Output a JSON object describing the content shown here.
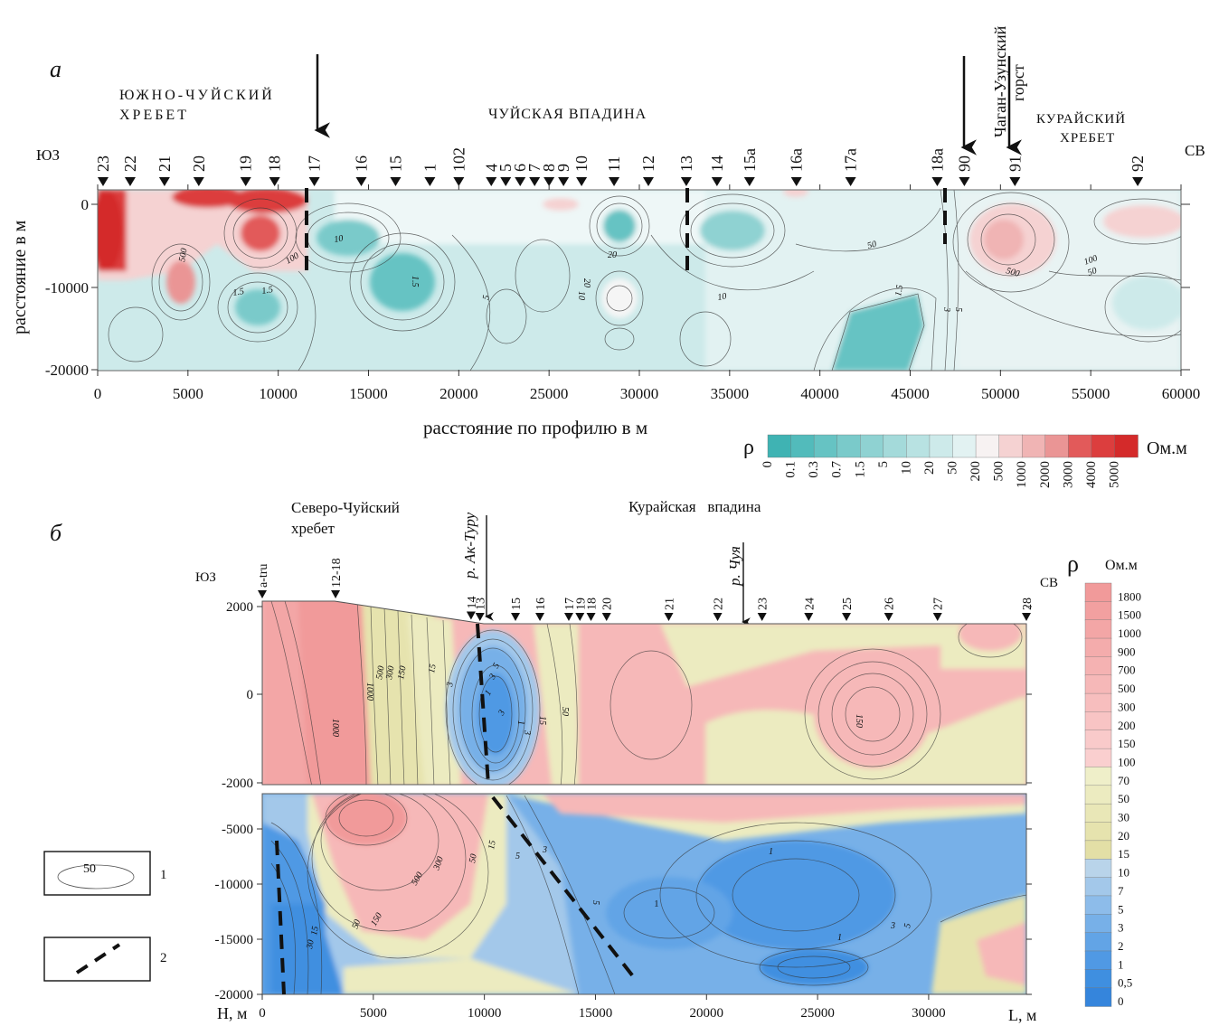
{
  "panel_a": {
    "letter": "а",
    "region_south_chuya": [
      "ЮЖНО-ЧУЙСКИЙ",
      "ХРЕБЕТ"
    ],
    "region_chuya_basin": "ЧУЙСКАЯ ВПАДИНА",
    "region_kurai_ridge": [
      "КУРАЙСКИЙ",
      "ХРЕБЕТ"
    ],
    "region_chagan": [
      "Чаган-Узунский",
      "горст"
    ],
    "dir_sw": "ЮЗ",
    "dir_ne": "СВ",
    "y_axis_label": "расстояние в м",
    "x_axis_label": "расстояние по профилю в м",
    "x_ticks": [
      "0",
      "5000",
      "10000",
      "15000",
      "20000",
      "25000",
      "30000",
      "35000",
      "40000",
      "45000",
      "50000",
      "55000",
      "60000"
    ],
    "y_ticks": [
      "0",
      "-10000",
      "-20000"
    ],
    "stations": [
      {
        "id": "23",
        "x": 300
      },
      {
        "id": "22",
        "x": 1800
      },
      {
        "id": "21",
        "x": 3700
      },
      {
        "id": "20",
        "x": 5600
      },
      {
        "id": "19",
        "x": 8200
      },
      {
        "id": "18",
        "x": 9800
      },
      {
        "id": "17",
        "x": 12000
      },
      {
        "id": "16",
        "x": 14600
      },
      {
        "id": "15",
        "x": 16500
      },
      {
        "id": "1",
        "x": 18400
      },
      {
        "id": "102",
        "x": 20000
      },
      {
        "id": "4",
        "x": 21800
      },
      {
        "id": "5",
        "x": 22600
      },
      {
        "id": "6",
        "x": 23400
      },
      {
        "id": "7",
        "x": 24200
      },
      {
        "id": "8",
        "x": 25000
      },
      {
        "id": "9",
        "x": 25800
      },
      {
        "id": "10",
        "x": 26800
      },
      {
        "id": "11",
        "x": 28600
      },
      {
        "id": "12",
        "x": 30500
      },
      {
        "id": "13",
        "x": 32600
      },
      {
        "id": "14",
        "x": 34300
      },
      {
        "id": "15а",
        "x": 36100
      },
      {
        "id": "16а",
        "x": 38700
      },
      {
        "id": "17а",
        "x": 41700
      },
      {
        "id": "18а",
        "x": 46500
      },
      {
        "id": "90",
        "x": 48000
      },
      {
        "id": "91",
        "x": 50800
      },
      {
        "id": "92",
        "x": 57600
      }
    ],
    "contour_labels": [
      "500",
      "1.5",
      "10",
      "100",
      "20",
      "1.5",
      "5",
      "20",
      "10",
      "50",
      "1.5",
      "10",
      "500",
      "100",
      "50",
      "1.5",
      "3",
      "5"
    ],
    "legend_symbol": "ρ",
    "legend_unit": "Ом.м",
    "legend_values": [
      "0",
      "0.1",
      "0.3",
      "0.7",
      "1.5",
      "5",
      "10",
      "20",
      "50",
      "200",
      "500",
      "1000",
      "2000",
      "3000",
      "4000",
      "5000"
    ],
    "legend_colors": [
      "#3fb3b3",
      "#52bbbb",
      "#66c3c3",
      "#7acaca",
      "#8fd2d2",
      "#a4dada",
      "#b8e2e2",
      "#cdeaea",
      "#e2f2f2",
      "#f7f2f2",
      "#f5d2d2",
      "#f0b4b4",
      "#ea9595",
      "#e25a5a",
      "#dc3e3e",
      "#d42a2a"
    ]
  },
  "panel_b": {
    "letter": "б",
    "region_north_chuya": [
      "Северо-Чуйский",
      "хребет"
    ],
    "region_kurai_basin": "Курайская   впадина",
    "river_ak_turu": "р. Ак-Туру",
    "river_chuya": "р. Чуя",
    "dir_sw": "ЮЗ",
    "dir_ne": "СВ",
    "y_axis_label": "Н, м",
    "x_axis_label": "L, м",
    "x_ticks": [
      "0",
      "5000",
      "10000",
      "15000",
      "20000",
      "25000",
      "30000"
    ],
    "y_ticks": [
      "2000",
      "0",
      "-2000",
      "-5000",
      "-10000",
      "-15000",
      "-20000"
    ],
    "stations": [
      {
        "id": "a-tru",
        "x": 0
      },
      {
        "id": "12-18",
        "x": 3300
      },
      {
        "id": "14",
        "x": 9400
      },
      {
        "id": "13",
        "x": 9800
      },
      {
        "id": "15",
        "x": 11400
      },
      {
        "id": "16",
        "x": 12500
      },
      {
        "id": "17",
        "x": 13800
      },
      {
        "id": "19",
        "x": 14300
      },
      {
        "id": "18",
        "x": 14800
      },
      {
        "id": "20",
        "x": 15500
      },
      {
        "id": "21",
        "x": 18300
      },
      {
        "id": "22",
        "x": 20500
      },
      {
        "id": "23",
        "x": 22500
      },
      {
        "id": "24",
        "x": 24600
      },
      {
        "id": "25",
        "x": 26300
      },
      {
        "id": "26",
        "x": 28200
      },
      {
        "id": "27",
        "x": 30400
      },
      {
        "id": "28",
        "x": 34400
      }
    ],
    "contour_labels": [
      "1000",
      "1000",
      "500",
      "300",
      "150",
      "15",
      "3",
      "1",
      "3",
      "15",
      "50",
      "150",
      "5",
      "3",
      "1",
      "3",
      "500",
      "300",
      "50",
      "15",
      "5",
      "3",
      "5",
      "1",
      "1",
      "3",
      "5",
      "150",
      "50",
      "1",
      "15",
      "30"
    ],
    "legend_symbol": "ρ",
    "legend_unit": "Ом.м",
    "legend_values": [
      "1800",
      "1500",
      "1000",
      "900",
      "700",
      "500",
      "300",
      "200",
      "150",
      "100",
      "70",
      "50",
      "30",
      "20",
      "15",
      "10",
      "7",
      "5",
      "3",
      "2",
      "1",
      "0,5",
      "0"
    ],
    "legend_colors": [
      "#f19a9a",
      "#f2a0a0",
      "#f3a6a6",
      "#f4acac",
      "#f5b2b2",
      "#f6b8b8",
      "#f7bebe",
      "#f8c4c4",
      "#f9caca",
      "#facfcf",
      "#efefc9",
      "#ecebc0",
      "#e9e7b7",
      "#e6e3ae",
      "#e3dfa6",
      "#b9d4ea",
      "#a3c8ea",
      "#8dbcea",
      "#77b0e8",
      "#62a4e6",
      "#5099e4",
      "#3f8fe0",
      "#3585dc"
    ]
  },
  "key": {
    "item1_label": "50",
    "item1_num": "1",
    "item2_num": "2"
  }
}
